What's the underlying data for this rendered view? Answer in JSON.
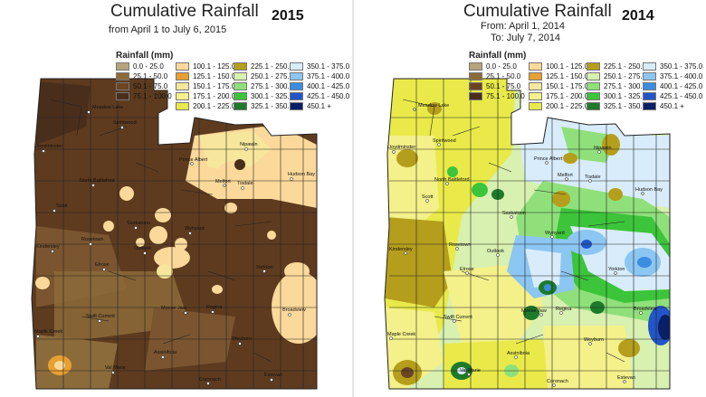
{
  "maps": [
    {
      "title": "Cumulative Rainfall",
      "year": "2015",
      "subtitle_lines": [
        "from April 1 to July 6, 2015"
      ],
      "legend_title": "Rainfall (mm)",
      "towns": [
        "Meadow Lake",
        "Lloydminster",
        "Spiritwood",
        "Prince Albert",
        "Melfort",
        "Tisdale",
        "Nipawin",
        "Hudson Bay",
        "North Battleford",
        "Scott",
        "Saskatoon",
        "Wynyard",
        "Kindersley",
        "Rosetown",
        "Elrose",
        "Outlook",
        "Yorkton",
        "Regina",
        "Moose Jaw",
        "Swift Current",
        "Maple Creek",
        "Assiniboia",
        "Val Marie",
        "Weyburn",
        "Estevan",
        "Broadview",
        "Coronach"
      ]
    },
    {
      "title": "Cumulative Rainfall",
      "year": "2014",
      "subtitle_lines": [
        "From: April 1, 2014",
        "To: July 7, 2014"
      ],
      "legend_title": "Rainfall (mm)",
      "towns": [
        "Meadow Lake",
        "Lloydminster",
        "Spiritwood",
        "Prince Albert",
        "Melfort",
        "Tisdale",
        "Nipawin",
        "Hudson Bay",
        "North Battleford",
        "Scott",
        "Saskatoon",
        "Wynyard",
        "Kindersley",
        "Rosetown",
        "Elrose",
        "Outlook",
        "Yorkton",
        "Regina",
        "Moose Jaw",
        "Swift Current",
        "Maple Creek",
        "Assiniboia",
        "Val Marie",
        "Weyburn",
        "Estevan",
        "Broadview",
        "Coronach"
      ]
    }
  ],
  "legend_classes": [
    {
      "label": "0.0 -  25.0",
      "color": "#b5a57c"
    },
    {
      "label": "25.1 -  50.0",
      "color": "#8c6b3a"
    },
    {
      "label": "50.1 -  75.0",
      "color": "#6b4423"
    },
    {
      "label": "75.1 - 100.0",
      "color": "#4a2e1c"
    },
    {
      "label": "100.1 - 125.0",
      "color": "#fbd99a"
    },
    {
      "label": "125.1 - 150.0",
      "color": "#e8a030"
    },
    {
      "label": "150.1 - 175.0",
      "color": "#f7e79c"
    },
    {
      "label": "175.1 - 200.0",
      "color": "#f4f08a"
    },
    {
      "label": "200.1 - 225.0",
      "color": "#e9ea4a"
    },
    {
      "label": "225.1 - 250.0",
      "color": "#b59e1c"
    },
    {
      "label": "250.1 - 275.0",
      "color": "#d8f0b0"
    },
    {
      "label": "275.1 - 300.0",
      "color": "#8fe07a"
    },
    {
      "label": "300.1 - 325.0",
      "color": "#3cc43a"
    },
    {
      "label": "325.1 - 350.0",
      "color": "#1e7a2a"
    },
    {
      "label": "350.1 - 375.0",
      "color": "#d8ecfb"
    },
    {
      "label": "375.1 - 400.0",
      "color": "#8cc6f2"
    },
    {
      "label": "400.1 - 425.0",
      "color": "#3b8de0"
    },
    {
      "label": "425.1 - 450.0",
      "color": "#2255c8"
    },
    {
      "label": "450.1 +",
      "color": "#0a1f66"
    }
  ]
}
